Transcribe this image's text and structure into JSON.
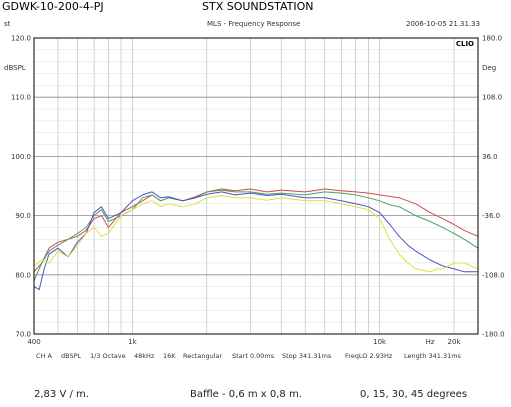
{
  "header": {
    "model": "GDWK-10-200-4-PJ",
    "title": "STX SOUNDSTATION",
    "left_code": "st",
    "chart_title": "MLS - Frequency Response",
    "timestamp": "2006-10-05 21.31.33",
    "badge": "CLIO"
  },
  "params": [
    "CH A",
    "dBSPL",
    "1/3 Octave",
    "48kHz",
    "16K",
    "Rectangular",
    "Start 0.00ms",
    "Stop 341.31ms",
    "FreqLO 2.93Hz",
    "Length 341.31ms"
  ],
  "footer": {
    "voltage": "2,83 V / m.",
    "baffle": "Baffle - 0,6 m x 0,8 m.",
    "angles": "0, 15, 30, 45 degrees"
  },
  "chart_data": {
    "type": "line",
    "x_scale": "log",
    "xlim": [
      400,
      25000
    ],
    "ylim": [
      70,
      120
    ],
    "y2lim": [
      -180,
      180
    ],
    "ylabel": "dBSPL",
    "y2label": "Deg",
    "x_tick_labels": [
      {
        "value": 400,
        "label": "400"
      },
      {
        "value": 1000,
        "label": "1k"
      },
      {
        "value": 10000,
        "label": "10k"
      },
      {
        "value": 16000,
        "label": "Hz"
      },
      {
        "value": 20000,
        "label": "20k"
      }
    ],
    "y_ticks": [
      70.0,
      80.0,
      90.0,
      100.0,
      110.0,
      120.0
    ],
    "y_tick_labels": [
      "70.0",
      "80.0",
      "90.0",
      "100.0",
      "110.0",
      "120.0"
    ],
    "y2_ticks": [
      -180,
      -108,
      -36,
      36,
      108,
      180
    ],
    "y2_tick_labels": [
      "-180.0",
      "-108.0",
      "-36.0",
      "36.0",
      "108.0",
      "180.0"
    ],
    "grid": true,
    "colors": {
      "axis": "#000000",
      "grid": "#b5b5b5",
      "series": [
        "#c85050",
        "#4fa060",
        "#5050c8",
        "#e0e040"
      ]
    },
    "series": [
      {
        "values": [
          [
            400,
            80.5
          ],
          [
            430,
            82
          ],
          [
            460,
            84.5
          ],
          [
            500,
            85.5
          ],
          [
            550,
            86
          ],
          [
            600,
            86.5
          ],
          [
            650,
            87.5
          ],
          [
            700,
            89.5
          ],
          [
            750,
            90
          ],
          [
            800,
            88
          ],
          [
            900,
            90.5
          ],
          [
            1000,
            91.5
          ],
          [
            1100,
            92.5
          ],
          [
            1200,
            93.5
          ],
          [
            1300,
            92.5
          ],
          [
            1400,
            93
          ],
          [
            1600,
            92.5
          ],
          [
            1800,
            93.2
          ],
          [
            2000,
            94
          ],
          [
            2300,
            94.5
          ],
          [
            2600,
            94.2
          ],
          [
            3000,
            94.5
          ],
          [
            3500,
            94
          ],
          [
            4000,
            94.3
          ],
          [
            5000,
            94
          ],
          [
            6000,
            94.5
          ],
          [
            7000,
            94.2
          ],
          [
            8000,
            94
          ],
          [
            9000,
            93.8
          ],
          [
            10000,
            93.5
          ],
          [
            12000,
            93
          ],
          [
            14000,
            92
          ],
          [
            16000,
            90.5
          ],
          [
            18000,
            89.5
          ],
          [
            20000,
            88.5
          ],
          [
            22000,
            87.5
          ],
          [
            25000,
            86.5
          ]
        ]
      },
      {
        "values": [
          [
            400,
            79
          ],
          [
            430,
            82
          ],
          [
            460,
            84
          ],
          [
            500,
            85
          ],
          [
            550,
            86
          ],
          [
            600,
            87
          ],
          [
            650,
            88
          ],
          [
            700,
            90
          ],
          [
            750,
            91
          ],
          [
            800,
            89
          ],
          [
            900,
            90
          ],
          [
            1000,
            91
          ],
          [
            1100,
            93
          ],
          [
            1200,
            93.5
          ],
          [
            1300,
            92.5
          ],
          [
            1400,
            93
          ],
          [
            1600,
            92.5
          ],
          [
            1800,
            93
          ],
          [
            2000,
            94
          ],
          [
            2300,
            94.3
          ],
          [
            2600,
            94
          ],
          [
            3000,
            94
          ],
          [
            3500,
            93.6
          ],
          [
            4000,
            93.8
          ],
          [
            5000,
            93.5
          ],
          [
            6000,
            94
          ],
          [
            7000,
            93.8
          ],
          [
            8000,
            93.5
          ],
          [
            9000,
            93
          ],
          [
            10000,
            92.5
          ],
          [
            11000,
            91.8
          ],
          [
            12000,
            91.5
          ],
          [
            14000,
            90
          ],
          [
            16000,
            89
          ],
          [
            18000,
            88
          ],
          [
            20000,
            87
          ],
          [
            22000,
            86
          ],
          [
            25000,
            84.5
          ]
        ]
      },
      {
        "values": [
          [
            400,
            78
          ],
          [
            420,
            77.5
          ],
          [
            440,
            81
          ],
          [
            460,
            83.5
          ],
          [
            500,
            84.5
          ],
          [
            550,
            83
          ],
          [
            600,
            85.5
          ],
          [
            650,
            87
          ],
          [
            700,
            90.5
          ],
          [
            750,
            91.5
          ],
          [
            800,
            89.5
          ],
          [
            900,
            90.5
          ],
          [
            1000,
            92.5
          ],
          [
            1100,
            93.5
          ],
          [
            1200,
            94
          ],
          [
            1300,
            93
          ],
          [
            1400,
            93.2
          ],
          [
            1600,
            92.5
          ],
          [
            1800,
            93
          ],
          [
            2000,
            93.6
          ],
          [
            2300,
            94
          ],
          [
            2600,
            93.5
          ],
          [
            3000,
            93.8
          ],
          [
            3500,
            93.4
          ],
          [
            4000,
            93.6
          ],
          [
            5000,
            93
          ],
          [
            6000,
            93
          ],
          [
            7000,
            92.5
          ],
          [
            8000,
            92
          ],
          [
            9000,
            91.5
          ],
          [
            10000,
            90.5
          ],
          [
            11000,
            88.5
          ],
          [
            12000,
            86.5
          ],
          [
            13000,
            85
          ],
          [
            14000,
            84
          ],
          [
            16000,
            82.5
          ],
          [
            18000,
            81.5
          ],
          [
            20000,
            81
          ],
          [
            22000,
            80.5
          ],
          [
            25000,
            80.5
          ]
        ]
      },
      {
        "values": [
          [
            400,
            81.5
          ],
          [
            430,
            82.5
          ],
          [
            460,
            82
          ],
          [
            500,
            84
          ],
          [
            550,
            83
          ],
          [
            600,
            85
          ],
          [
            650,
            87
          ],
          [
            700,
            88
          ],
          [
            750,
            86.5
          ],
          [
            800,
            87
          ],
          [
            900,
            90
          ],
          [
            1000,
            91
          ],
          [
            1100,
            92
          ],
          [
            1200,
            92.5
          ],
          [
            1300,
            91.5
          ],
          [
            1400,
            92
          ],
          [
            1600,
            91.5
          ],
          [
            1800,
            92
          ],
          [
            2000,
            93
          ],
          [
            2300,
            93.4
          ],
          [
            2600,
            93
          ],
          [
            3000,
            93
          ],
          [
            3500,
            92.6
          ],
          [
            4000,
            93
          ],
          [
            5000,
            92.5
          ],
          [
            6000,
            92.5
          ],
          [
            7000,
            92
          ],
          [
            8000,
            91.5
          ],
          [
            9000,
            91
          ],
          [
            10000,
            89.5
          ],
          [
            11000,
            86
          ],
          [
            12000,
            83.5
          ],
          [
            13000,
            82
          ],
          [
            14000,
            81
          ],
          [
            16000,
            80.5
          ],
          [
            17000,
            81
          ],
          [
            18000,
            81
          ],
          [
            20000,
            82
          ],
          [
            22000,
            82
          ],
          [
            25000,
            81
          ]
        ]
      }
    ]
  }
}
